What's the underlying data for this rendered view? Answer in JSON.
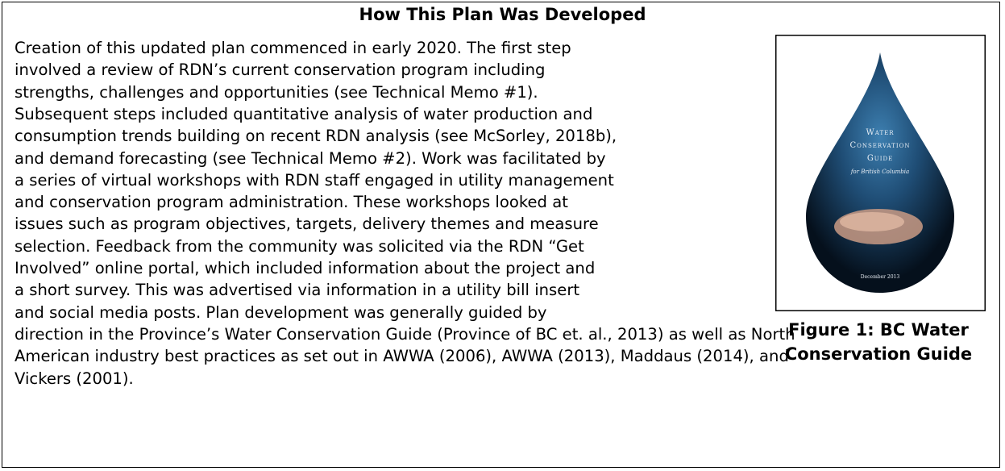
{
  "title": "How This Plan Was Developed",
  "paragraph_lines": [
    "Creation of this updated plan commenced in early 2020. The first step",
    "involved a review of RDN’s current conservation program including",
    "strengths, challenges and opportunities (see Technical Memo #1).",
    "Subsequent steps included quantitative analysis of water production and",
    "consumption trends building on recent RDN analysis (see McSorley, 2018b),",
    "and demand forecasting (see Technical Memo #2). Work was facilitated by",
    "a series of virtual workshops with RDN staff engaged in utility management",
    "and conservation program administration. These workshops looked at",
    "issues such as program objectives, targets, delivery themes and measure",
    "selection. Feedback from the community was solicited via the RDN “Get",
    "Involved” online portal, which included information about the project and",
    "a short survey. This was advertised via information in a utility bill insert",
    "and social media posts. Plan development was generally guided by",
    "direction in the Province’s Water Conservation Guide (Province of BC et. al., 2013) as well as North",
    "American industry best practices as set out in AWWA (2006), AWWA (2013), Maddaus (2014), and",
    "Vickers (2001)."
  ],
  "figure": {
    "cover_lines": [
      "Water",
      "Conservation",
      "Guide",
      "for British Columbia",
      "December 2013"
    ],
    "caption_lines": [
      "Figure 1: BC Water",
      "Conservation Guide"
    ]
  }
}
